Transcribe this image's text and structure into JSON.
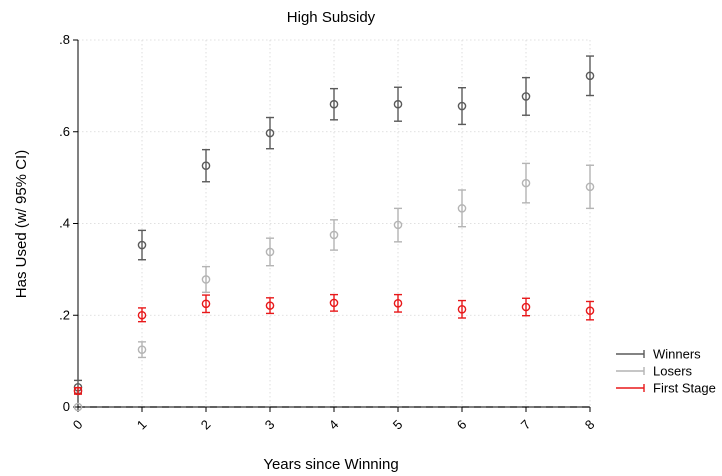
{
  "chart_data": {
    "type": "scatter",
    "title": "High Subsidy",
    "xlabel": "Years since Winning",
    "ylabel": "Has Used (w/ 95% CI)",
    "x": [
      0,
      1,
      2,
      3,
      4,
      5,
      6,
      7,
      8
    ],
    "x_tick_labels": [
      "0",
      "1",
      "2",
      "3",
      "4",
      "5",
      "6",
      "7",
      "8"
    ],
    "xlim": [
      0,
      8
    ],
    "ylim": [
      0,
      0.8
    ],
    "y_ticks": [
      0,
      0.2,
      0.4,
      0.6,
      0.8
    ],
    "y_tick_labels": [
      "0",
      ".2",
      ".4",
      ".6",
      ".8"
    ],
    "grid": true,
    "reference_line": {
      "y": 0,
      "style": "dashed"
    },
    "legend_position": "right",
    "series": [
      {
        "name": "Winners",
        "color": "#5a5a5a",
        "values": [
          0.043,
          0.353,
          0.526,
          0.597,
          0.66,
          0.66,
          0.656,
          0.677,
          0.722
        ],
        "ci_low": [
          0.03,
          0.321,
          0.491,
          0.563,
          0.626,
          0.623,
          0.616,
          0.636,
          0.679
        ],
        "ci_high": [
          0.058,
          0.385,
          0.561,
          0.631,
          0.694,
          0.697,
          0.696,
          0.718,
          0.765
        ]
      },
      {
        "name": "Losers",
        "color": "#b4b4b4",
        "values": [
          0.0,
          0.125,
          0.278,
          0.338,
          0.375,
          0.397,
          0.433,
          0.488,
          0.48
        ],
        "ci_low": [
          0.0,
          0.108,
          0.25,
          0.308,
          0.342,
          0.36,
          0.393,
          0.445,
          0.433
        ],
        "ci_high": [
          0.0,
          0.142,
          0.306,
          0.368,
          0.408,
          0.433,
          0.473,
          0.531,
          0.527
        ]
      },
      {
        "name": "First Stage",
        "color": "#e8181a",
        "values": [
          0.035,
          0.2,
          0.225,
          0.221,
          0.227,
          0.226,
          0.213,
          0.218,
          0.21
        ],
        "ci_low": [
          0.028,
          0.186,
          0.206,
          0.204,
          0.209,
          0.207,
          0.194,
          0.199,
          0.19
        ],
        "ci_high": [
          0.042,
          0.216,
          0.244,
          0.238,
          0.245,
          0.245,
          0.232,
          0.237,
          0.23
        ]
      }
    ]
  }
}
